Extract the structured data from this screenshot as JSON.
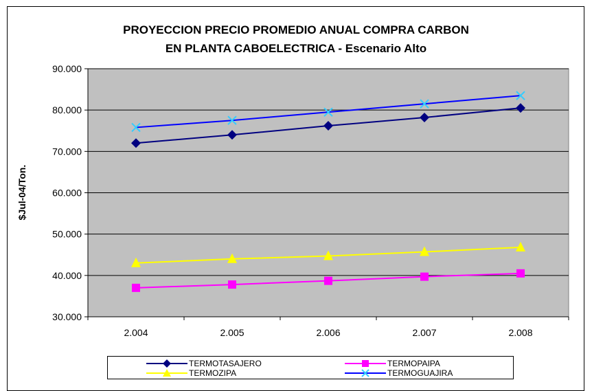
{
  "chart_data": {
    "type": "line",
    "title": "PROYECCION PRECIO PROMEDIO ANUAL COMPRA CARBON",
    "subtitle": "EN PLANTA CABOELECTRICA - Escenario Alto",
    "xlabel": "",
    "ylabel": "$Jul-04/Ton.",
    "categories": [
      "2.004",
      "2.005",
      "2.006",
      "2.007",
      "2.008"
    ],
    "ylim": [
      30000,
      90000
    ],
    "yticks": [
      30000,
      40000,
      50000,
      60000,
      70000,
      80000,
      90000
    ],
    "ytick_labels": [
      "30.000",
      "40.000",
      "50.000",
      "60.000",
      "70.000",
      "80.000",
      "90.000"
    ],
    "grid": true,
    "plot_background": "#c0c0c0",
    "legend_position": "bottom",
    "series": [
      {
        "name": "TERMOTASAJERO",
        "marker": "diamond",
        "color": "#000080",
        "values": [
          72000,
          74000,
          76200,
          78200,
          80500
        ]
      },
      {
        "name": "TERMOPAIPA",
        "marker": "square",
        "color": "#ff00ff",
        "values": [
          37000,
          37800,
          38700,
          39700,
          40500
        ]
      },
      {
        "name": "TERMOZIPA",
        "marker": "triangle",
        "color": "#ffff00",
        "values": [
          43000,
          44000,
          44700,
          45700,
          46800
        ]
      },
      {
        "name": "TERMOGUAJIRA",
        "marker": "x",
        "color": "#0000ff",
        "marker_color": "#33ccff",
        "values": [
          75800,
          77500,
          79500,
          81500,
          83500
        ]
      }
    ]
  }
}
